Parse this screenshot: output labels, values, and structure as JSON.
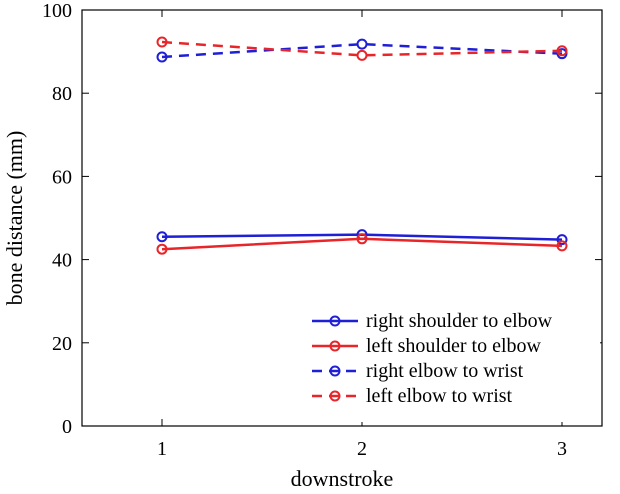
{
  "chart_data": {
    "type": "line",
    "title": "",
    "xlabel": "downstroke",
    "ylabel": "bone distance (mm)",
    "x": [
      1,
      2,
      3
    ],
    "xlim": [
      0.6,
      3.2
    ],
    "ylim": [
      0,
      100
    ],
    "xticks": [
      "1",
      "2",
      "3"
    ],
    "yticks": [
      "0",
      "20",
      "40",
      "60",
      "80",
      "100"
    ],
    "grid": false,
    "legend_position": "bottom-right",
    "series": [
      {
        "name": "right shoulder to elbow",
        "values": [
          45.5,
          46.0,
          44.8
        ],
        "color": "#1f1fd6",
        "style": "solid"
      },
      {
        "name": "left shoulder to elbow",
        "values": [
          42.5,
          45.0,
          43.3
        ],
        "color": "#e8262a",
        "style": "solid"
      },
      {
        "name": "right elbow to wrist",
        "values": [
          88.7,
          91.8,
          89.5
        ],
        "color": "#1f1fd6",
        "style": "dashed"
      },
      {
        "name": "left elbow to wrist",
        "values": [
          92.3,
          89.1,
          90.2
        ],
        "color": "#e8262a",
        "style": "dashed"
      }
    ]
  }
}
